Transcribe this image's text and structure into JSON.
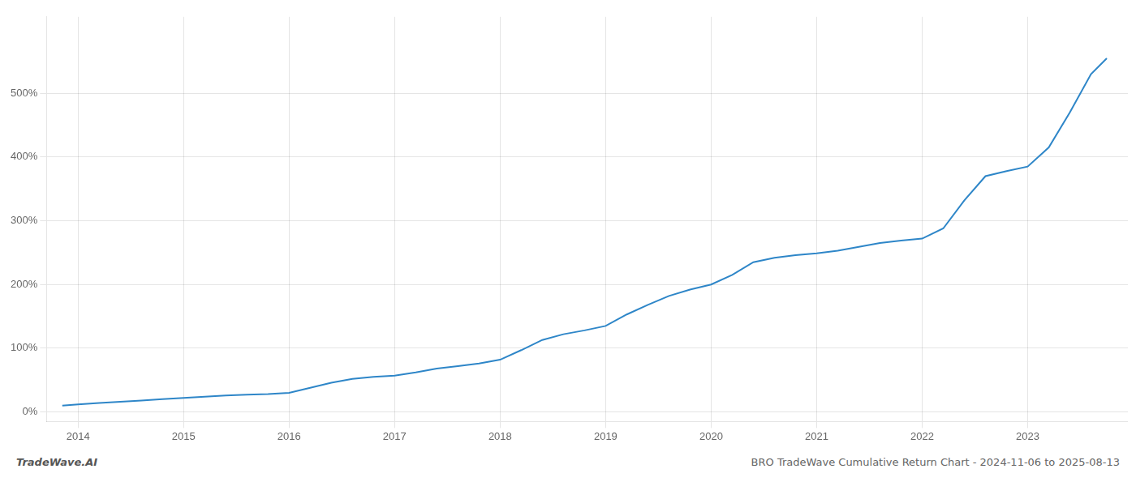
{
  "chart_data": {
    "type": "line",
    "title": "BRO TradeWave Cumulative Return Chart - 2024-11-06 to 2025-08-13",
    "annotations": [
      "TradeWave.AI"
    ],
    "color": "#2e86c8",
    "grid": true,
    "x": [
      2013.85,
      2014.0,
      2014.2,
      2014.4,
      2014.6,
      2014.8,
      2015.0,
      2015.2,
      2015.4,
      2015.6,
      2015.8,
      2016.0,
      2016.2,
      2016.4,
      2016.6,
      2016.8,
      2017.0,
      2017.2,
      2017.4,
      2017.6,
      2017.8,
      2018.0,
      2018.2,
      2018.4,
      2018.6,
      2018.8,
      2019.0,
      2019.2,
      2019.4,
      2019.6,
      2019.8,
      2020.0,
      2020.2,
      2020.4,
      2020.6,
      2020.8,
      2021.0,
      2021.2,
      2021.4,
      2021.6,
      2021.8,
      2022.0,
      2022.2,
      2022.4,
      2022.6,
      2022.8,
      2023.0,
      2023.2,
      2023.4,
      2023.6,
      2023.75
    ],
    "values": [
      10,
      12,
      14,
      16,
      18,
      20,
      22,
      24,
      26,
      27,
      28,
      30,
      38,
      46,
      52,
      55,
      57,
      62,
      68,
      72,
      76,
      82,
      97,
      113,
      122,
      128,
      135,
      153,
      168,
      182,
      192,
      200,
      215,
      235,
      242,
      246,
      249,
      253,
      259,
      265,
      269,
      272,
      288,
      332,
      370,
      378,
      385,
      415,
      470,
      530,
      555
    ],
    "xlim": [
      2013.7,
      2023.95
    ],
    "xticks": [
      2014,
      2015,
      2016,
      2017,
      2018,
      2019,
      2020,
      2021,
      2022,
      2023
    ],
    "ylim": [
      -15,
      620
    ],
    "yticks": [
      {
        "value": 0,
        "label": "0%"
      },
      {
        "value": 100,
        "label": "100%"
      },
      {
        "value": 200,
        "label": "200%"
      },
      {
        "value": 300,
        "label": "300%"
      },
      {
        "value": 400,
        "label": "400%"
      },
      {
        "value": 500,
        "label": "500%"
      }
    ]
  }
}
